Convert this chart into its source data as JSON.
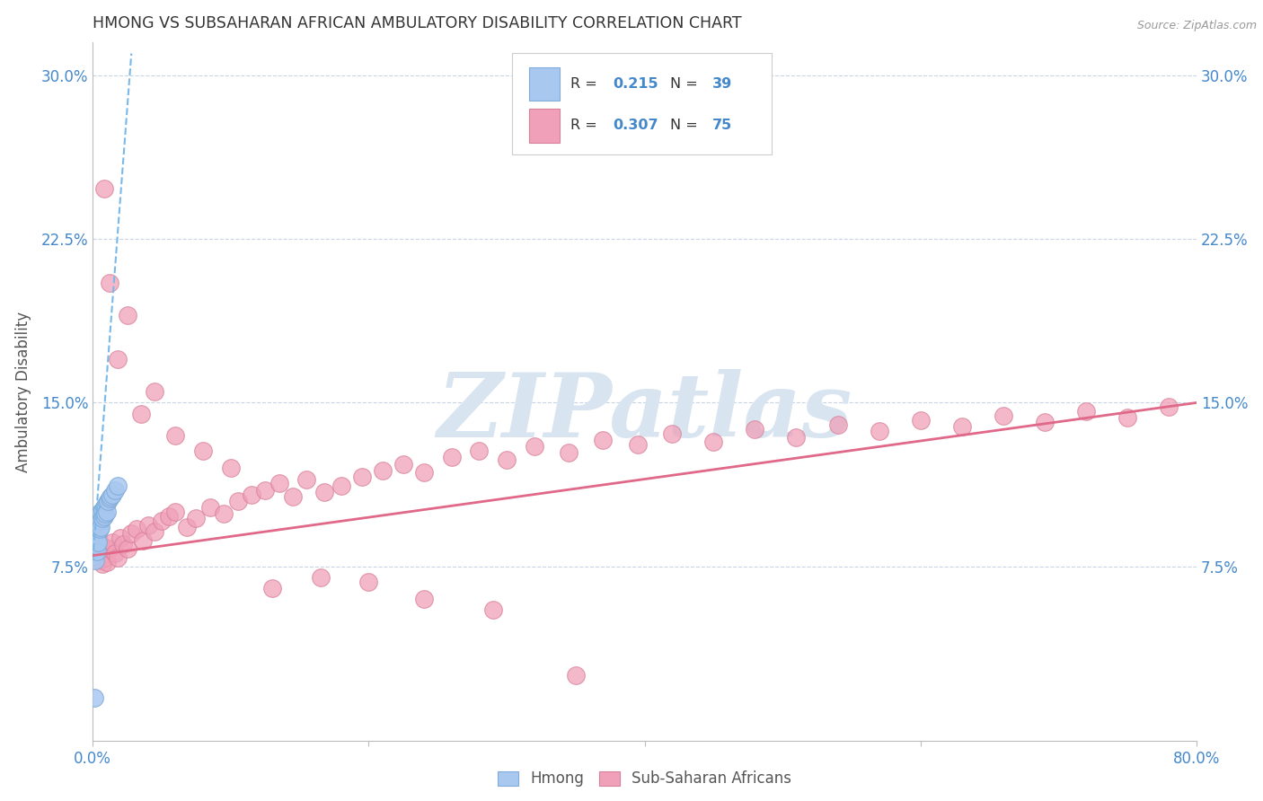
{
  "title": "HMONG VS SUBSAHARAN AFRICAN AMBULATORY DISABILITY CORRELATION CHART",
  "source": "Source: ZipAtlas.com",
  "ylabel": "Ambulatory Disability",
  "xlim": [
    0.0,
    0.8
  ],
  "ylim": [
    -0.005,
    0.315
  ],
  "ytick_vals": [
    0.075,
    0.15,
    0.225,
    0.3
  ],
  "ytick_labels": [
    "7.5%",
    "15.0%",
    "22.5%",
    "30.0%"
  ],
  "hmong_R": 0.215,
  "hmong_N": 39,
  "subsaharan_R": 0.307,
  "subsaharan_N": 75,
  "hmong_color": "#a8c8f0",
  "hmong_edge": "#80aad8",
  "subsaharan_color": "#f0a0b8",
  "subsaharan_edge": "#d88098",
  "trend_hmong_color": "#7ab8e8",
  "trend_subsaharan_color": "#e06888",
  "background_color": "#ffffff",
  "grid_color": "#c8d4e4",
  "watermark_color": "#d8e4f0",
  "title_color": "#333333",
  "axis_label_color": "#555555",
  "tick_label_color": "#4488cc",
  "hmong_x": [
    0.001,
    0.001,
    0.001,
    0.001,
    0.002,
    0.002,
    0.002,
    0.002,
    0.002,
    0.003,
    0.003,
    0.003,
    0.003,
    0.003,
    0.004,
    0.004,
    0.004,
    0.004,
    0.005,
    0.005,
    0.005,
    0.006,
    0.006,
    0.006,
    0.007,
    0.007,
    0.008,
    0.008,
    0.009,
    0.009,
    0.01,
    0.01,
    0.011,
    0.012,
    0.013,
    0.014,
    0.016,
    0.018,
    0.001
  ],
  "hmong_y": [
    0.092,
    0.088,
    0.085,
    0.08,
    0.095,
    0.09,
    0.087,
    0.083,
    0.078,
    0.096,
    0.093,
    0.09,
    0.087,
    0.082,
    0.098,
    0.094,
    0.091,
    0.086,
    0.099,
    0.095,
    0.092,
    0.1,
    0.096,
    0.093,
    0.101,
    0.097,
    0.102,
    0.098,
    0.103,
    0.099,
    0.104,
    0.1,
    0.105,
    0.106,
    0.107,
    0.108,
    0.11,
    0.112,
    0.015
  ],
  "subsaharan_x": [
    0.002,
    0.003,
    0.004,
    0.005,
    0.006,
    0.007,
    0.008,
    0.009,
    0.01,
    0.012,
    0.014,
    0.016,
    0.018,
    0.02,
    0.022,
    0.025,
    0.028,
    0.032,
    0.036,
    0.04,
    0.045,
    0.05,
    0.055,
    0.06,
    0.068,
    0.075,
    0.085,
    0.095,
    0.105,
    0.115,
    0.125,
    0.135,
    0.145,
    0.155,
    0.168,
    0.18,
    0.195,
    0.21,
    0.225,
    0.24,
    0.26,
    0.28,
    0.3,
    0.32,
    0.345,
    0.37,
    0.395,
    0.42,
    0.45,
    0.48,
    0.51,
    0.54,
    0.57,
    0.6,
    0.63,
    0.66,
    0.69,
    0.72,
    0.75,
    0.78,
    0.008,
    0.012,
    0.018,
    0.025,
    0.035,
    0.045,
    0.06,
    0.08,
    0.1,
    0.13,
    0.165,
    0.2,
    0.24,
    0.29,
    0.35
  ],
  "subsaharan_y": [
    0.085,
    0.082,
    0.088,
    0.08,
    0.078,
    0.076,
    0.084,
    0.079,
    0.077,
    0.083,
    0.086,
    0.081,
    0.079,
    0.088,
    0.085,
    0.083,
    0.09,
    0.092,
    0.087,
    0.094,
    0.091,
    0.096,
    0.098,
    0.1,
    0.093,
    0.097,
    0.102,
    0.099,
    0.105,
    0.108,
    0.11,
    0.113,
    0.107,
    0.115,
    0.109,
    0.112,
    0.116,
    0.119,
    0.122,
    0.118,
    0.125,
    0.128,
    0.124,
    0.13,
    0.127,
    0.133,
    0.131,
    0.136,
    0.132,
    0.138,
    0.134,
    0.14,
    0.137,
    0.142,
    0.139,
    0.144,
    0.141,
    0.146,
    0.143,
    0.148,
    0.248,
    0.205,
    0.17,
    0.19,
    0.145,
    0.155,
    0.135,
    0.128,
    0.12,
    0.065,
    0.07,
    0.068,
    0.06,
    0.055,
    0.025
  ],
  "trend_hmong_x0": 0.0,
  "trend_hmong_x1": 0.028,
  "trend_hmong_y0": 0.078,
  "trend_hmong_y1": 0.31,
  "trend_sub_x0": 0.0,
  "trend_sub_x1": 0.8,
  "trend_sub_y0": 0.08,
  "trend_sub_y1": 0.15
}
